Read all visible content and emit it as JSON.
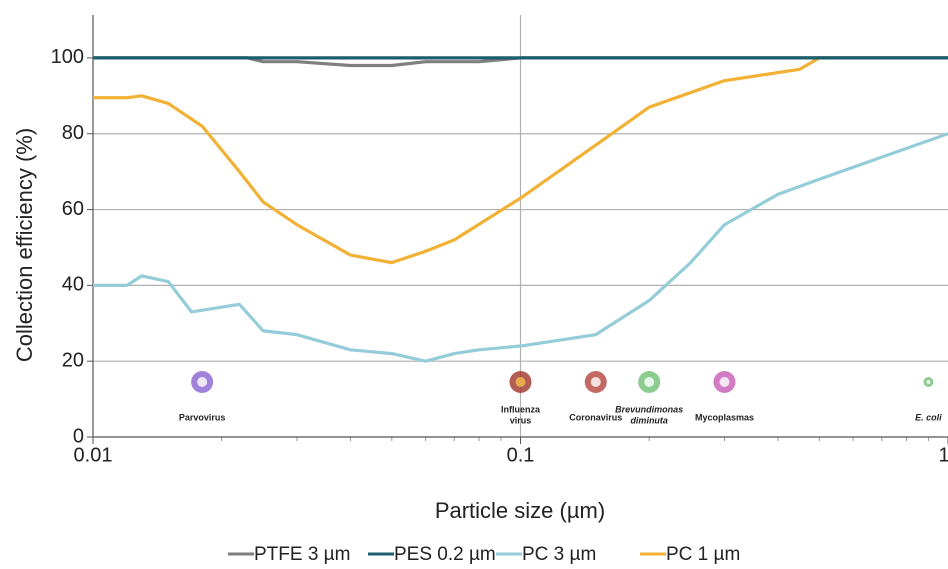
{
  "chart_data": {
    "type": "line",
    "xlabel": "Particle size (µm)",
    "ylabel": "Collection efficiency (%)",
    "xscale": "log",
    "xlim": [
      0.01,
      1
    ],
    "xticks": [
      0.01,
      0.1,
      1
    ],
    "xminor_ticks": [
      0.02,
      0.03,
      0.04,
      0.05,
      0.06,
      0.07,
      0.08,
      0.09,
      0.2,
      0.3,
      0.4,
      0.5,
      0.6,
      0.7,
      0.8,
      0.9
    ],
    "ylim": [
      0,
      110
    ],
    "yticks": [
      0,
      20,
      40,
      60,
      80,
      100
    ],
    "grid": true,
    "legend": "bottom",
    "series": [
      {
        "name": "PTFE 3 µm",
        "color": "#7f7f7f",
        "x": [
          0.01,
          0.023,
          0.025,
          0.03,
          0.04,
          0.05,
          0.06,
          0.08,
          0.1,
          1
        ],
        "values": [
          100,
          100,
          99,
          99,
          98,
          98,
          99,
          99,
          100,
          100
        ]
      },
      {
        "name": "PES 0.2 µm",
        "color": "#1b5f6f",
        "x": [
          0.01,
          1
        ],
        "values": [
          100,
          100
        ]
      },
      {
        "name": "PC 3 µm",
        "color": "#94cdd9",
        "x": [
          0.01,
          0.012,
          0.013,
          0.015,
          0.017,
          0.022,
          0.025,
          0.03,
          0.04,
          0.05,
          0.06,
          0.07,
          0.08,
          0.1,
          0.15,
          0.2,
          0.25,
          0.3,
          0.4,
          0.5,
          1
        ],
        "values": [
          40,
          40,
          42.5,
          41,
          33,
          35,
          28,
          27,
          23,
          22,
          20,
          22,
          23,
          24,
          27,
          36,
          46,
          56,
          64,
          68,
          80
        ]
      },
      {
        "name": "PC 1 µm",
        "color": "#f2b134",
        "x": [
          0.01,
          0.012,
          0.013,
          0.015,
          0.018,
          0.022,
          0.025,
          0.03,
          0.04,
          0.05,
          0.06,
          0.07,
          0.1,
          0.15,
          0.2,
          0.3,
          0.45,
          0.5,
          1
        ],
        "values": [
          89.5,
          89.5,
          90,
          88,
          82,
          70,
          62,
          56,
          48,
          46,
          49,
          52,
          63,
          77,
          87,
          94,
          97,
          100,
          100
        ]
      }
    ],
    "annotations": [
      {
        "lines": [
          "Parvovirus"
        ]
      },
      {
        "lines": [
          "Influenza",
          "virus"
        ]
      },
      {
        "lines": [
          "Coronavirus"
        ]
      },
      {
        "lines": [
          "Brevundimonas",
          "diminuta"
        ],
        "italic": true
      },
      {
        "lines": [
          "Mycoplasmas"
        ]
      },
      {
        "lines": [
          "E. coli"
        ],
        "italic": true
      }
    ]
  }
}
